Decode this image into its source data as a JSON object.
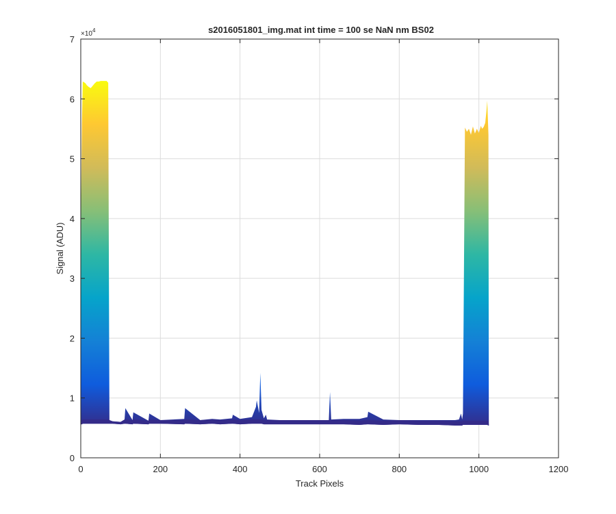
{
  "chart_data": {
    "type": "area",
    "title": "s2016051801_img.mat int time = 100 se  NaN nm BS02",
    "xlabel": "Track Pixels",
    "ylabel": "Signal (ADU)",
    "xlim": [
      0,
      1200
    ],
    "ylim": [
      0,
      70000
    ],
    "x_ticks": [
      0,
      200,
      400,
      600,
      800,
      1000,
      1200
    ],
    "y_ticks": [
      0,
      10000,
      20000,
      30000,
      40000,
      50000,
      60000,
      70000
    ],
    "x_tick_labels": [
      "0",
      "200",
      "400",
      "600",
      "800",
      "1000",
      "1200"
    ],
    "y_tick_labels": [
      "0",
      "1",
      "2",
      "3",
      "4",
      "5",
      "6",
      "7"
    ],
    "y_exponent_label": "×10",
    "y_exponent_power": "4",
    "grid": true,
    "colormap": [
      "#352a87",
      "#0f5cdd",
      "#1481d6",
      "#06a4ca",
      "#2eb7a4",
      "#87bf77",
      "#d1bb59",
      "#fec832",
      "#f9fb0e"
    ],
    "envelope": {
      "x": [
        0,
        3,
        5,
        8,
        12,
        15,
        20,
        25,
        30,
        35,
        40,
        45,
        50,
        55,
        60,
        65,
        69,
        72,
        80,
        100,
        110,
        112,
        130,
        132,
        170,
        172,
        200,
        260,
        262,
        300,
        330,
        350,
        380,
        382,
        400,
        430,
        440,
        442,
        448,
        451,
        454,
        460,
        465,
        468,
        500,
        550,
        600,
        623,
        626,
        629,
        660,
        700,
        720,
        722,
        760,
        800,
        850,
        900,
        940,
        950,
        955,
        958,
        960,
        965,
        970,
        975,
        980,
        985,
        990,
        995,
        1000,
        1005,
        1008,
        1012,
        1016,
        1019,
        1021,
        1024,
        1025
      ],
      "upper": [
        39000,
        56000,
        62900,
        62800,
        62600,
        62300,
        62000,
        61800,
        62200,
        62600,
        62900,
        62900,
        63000,
        63000,
        63000,
        63000,
        62700,
        6300,
        6100,
        6000,
        6400,
        8300,
        6300,
        7600,
        6200,
        7400,
        6300,
        6500,
        8300,
        6300,
        6500,
        6400,
        6600,
        7200,
        6500,
        6800,
        8500,
        9600,
        7500,
        14200,
        8000,
        6600,
        7200,
        6400,
        6300,
        6300,
        6300,
        6300,
        11000,
        6400,
        6500,
        6500,
        6800,
        7700,
        6400,
        6300,
        6300,
        6300,
        6300,
        6400,
        7400,
        6400,
        7400,
        55200,
        54500,
        55000,
        54000,
        55400,
        54200,
        55000,
        54300,
        55500,
        55000,
        55300,
        56000,
        58000,
        59700,
        54000,
        5600
      ],
      "lower": [
        5600,
        5600,
        5700,
        5700,
        5700,
        5700,
        5700,
        5700,
        5700,
        5700,
        5700,
        5700,
        5700,
        5700,
        5700,
        5700,
        5700,
        5700,
        5700,
        5600,
        5700,
        5700,
        5600,
        5700,
        5600,
        5700,
        5700,
        5600,
        5700,
        5600,
        5700,
        5600,
        5700,
        5700,
        5600,
        5700,
        5700,
        5700,
        5700,
        5700,
        5700,
        5600,
        5600,
        5600,
        5600,
        5600,
        5600,
        5600,
        5600,
        5600,
        5600,
        5500,
        5600,
        5600,
        5500,
        5600,
        5500,
        5500,
        5400,
        5400,
        5400,
        5400,
        5500,
        5500,
        5500,
        5500,
        5500,
        5500,
        5500,
        5500,
        5500,
        5500,
        5500,
        5500,
        5500,
        5500,
        5500,
        5400,
        5400
      ]
    }
  }
}
